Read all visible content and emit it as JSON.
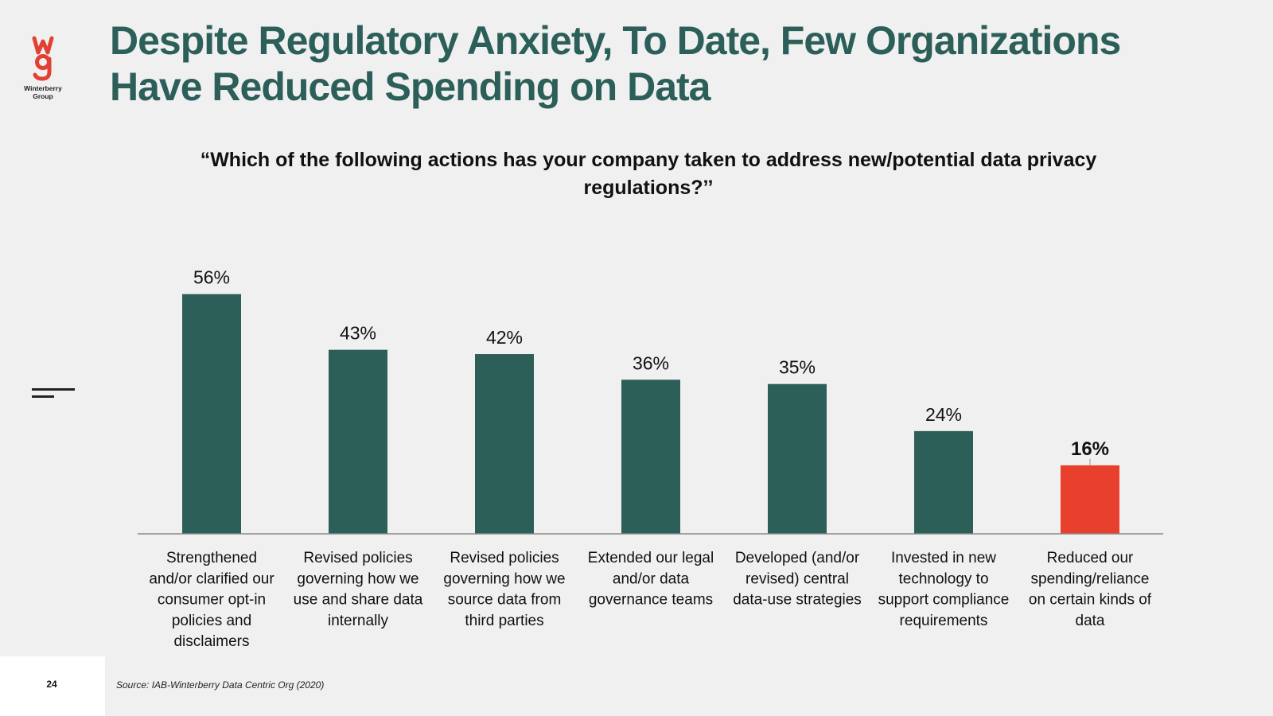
{
  "brand": {
    "logo_text": "Winterberry Group",
    "logo_colors": {
      "red": "#e24033",
      "dark": "#222222"
    }
  },
  "header": {
    "title_line1": "Despite Regulatory Anxiety, To Date, Few Organizations",
    "title_line2": "Have Reduced Spending on Data"
  },
  "colors": {
    "primary_bar": "#2d5f59",
    "highlight_bar": "#e8402d",
    "axis": "#888888",
    "title": "#2c5f59"
  },
  "chart_data": {
    "type": "bar",
    "title": "“Which of the following actions has your company taken to address new/potential data privacy regulations?’’",
    "categories": [
      [
        "Strengthened",
        "and/or clarified our",
        "consumer opt-in",
        "policies and",
        "disclaimers"
      ],
      [
        "Revised policies",
        "governing how we",
        "use and share data",
        "internally"
      ],
      [
        "Revised policies",
        "governing how we",
        "source data from",
        "third parties"
      ],
      [
        "Extended our legal",
        "and/or data",
        "governance teams"
      ],
      [
        "Developed (and/or",
        "revised) central",
        "data-use strategies"
      ],
      [
        "Invested in new",
        "technology to",
        "support compliance",
        "requirements"
      ],
      [
        "Reduced our",
        "spending/reliance",
        "on certain kinds of",
        "data"
      ]
    ],
    "values": [
      56,
      43,
      42,
      36,
      35,
      24,
      16
    ],
    "value_labels": [
      "56%",
      "43%",
      "42%",
      "36%",
      "35%",
      "24%",
      "16%"
    ],
    "highlight_index": 6,
    "ylim": [
      0,
      60
    ],
    "grid": false,
    "legend": "none",
    "xlabel": "",
    "ylabel": ""
  },
  "footer": {
    "page_number": "24",
    "source": "Source: IAB-Winterberry Data Centric Org (2020)"
  }
}
